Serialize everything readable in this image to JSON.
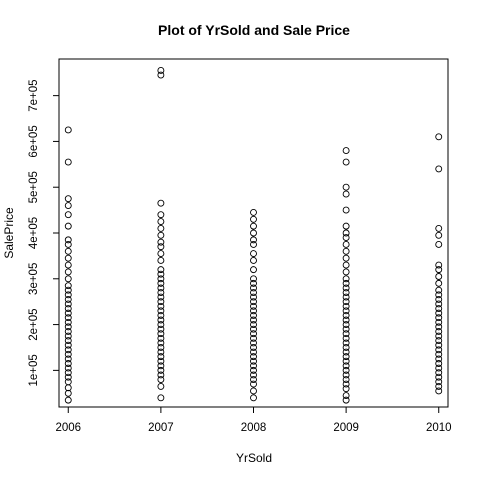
{
  "chart_data": {
    "type": "scatter",
    "title": "Plot of YrSold and Sale Price",
    "xlabel": "YrSold",
    "ylabel": "SalePrice",
    "xlim": [
      2005.9,
      2010.1
    ],
    "ylim": [
      20000,
      780000
    ],
    "x_ticks": [
      {
        "value": 2006,
        "label": "2006"
      },
      {
        "value": 2007,
        "label": "2007"
      },
      {
        "value": 2008,
        "label": "2008"
      },
      {
        "value": 2009,
        "label": "2009"
      },
      {
        "value": 2010,
        "label": "2010"
      }
    ],
    "y_ticks": [
      {
        "value": 100000,
        "label": "1e+05"
      },
      {
        "value": 200000,
        "label": "2e+05"
      },
      {
        "value": 300000,
        "label": "3e+05"
      },
      {
        "value": 400000,
        "label": "4e+05"
      },
      {
        "value": 500000,
        "label": "5e+05"
      },
      {
        "value": 600000,
        "label": "6e+05"
      },
      {
        "value": 700000,
        "label": "7e+05"
      }
    ],
    "marker": "open-circle",
    "grid": false,
    "legend": "none",
    "points_by_year": [
      {
        "x": 2006,
        "y": [
          35000,
          50000,
          62000,
          75000,
          85000,
          95000,
          105000,
          115000,
          125000,
          135000,
          145000,
          155000,
          165000,
          175000,
          185000,
          195000,
          205000,
          215000,
          225000,
          235000,
          245000,
          255000,
          265000,
          275000,
          285000,
          300000,
          315000,
          330000,
          345000,
          360000,
          375000,
          385000,
          415000,
          440000,
          460000,
          475000,
          555000,
          625000
        ]
      },
      {
        "x": 2007,
        "y": [
          40000,
          65000,
          80000,
          90000,
          100000,
          110000,
          120000,
          130000,
          140000,
          150000,
          160000,
          170000,
          180000,
          190000,
          200000,
          210000,
          220000,
          230000,
          240000,
          250000,
          260000,
          270000,
          280000,
          290000,
          300000,
          310000,
          320000,
          340000,
          355000,
          370000,
          380000,
          395000,
          410000,
          425000,
          440000,
          465000,
          745000,
          755000
        ]
      },
      {
        "x": 2008,
        "y": [
          40000,
          55000,
          70000,
          80000,
          90000,
          100000,
          110000,
          120000,
          130000,
          140000,
          150000,
          160000,
          170000,
          180000,
          190000,
          200000,
          210000,
          220000,
          230000,
          240000,
          250000,
          260000,
          270000,
          280000,
          290000,
          300000,
          320000,
          340000,
          355000,
          375000,
          385000,
          400000,
          415000,
          430000,
          445000
        ]
      },
      {
        "x": 2009,
        "y": [
          35000,
          45000,
          60000,
          70000,
          80000,
          90000,
          100000,
          110000,
          120000,
          130000,
          140000,
          150000,
          160000,
          170000,
          180000,
          190000,
          200000,
          210000,
          220000,
          230000,
          240000,
          250000,
          260000,
          270000,
          280000,
          290000,
          300000,
          315000,
          330000,
          345000,
          360000,
          375000,
          390000,
          400000,
          415000,
          450000,
          485000,
          500000,
          555000,
          580000
        ]
      },
      {
        "x": 2010,
        "y": [
          55000,
          65000,
          75000,
          85000,
          95000,
          105000,
          115000,
          125000,
          135000,
          145000,
          155000,
          165000,
          175000,
          185000,
          195000,
          205000,
          215000,
          225000,
          235000,
          245000,
          255000,
          265000,
          275000,
          290000,
          305000,
          320000,
          330000,
          375000,
          395000,
          410000,
          540000,
          610000
        ]
      }
    ]
  }
}
